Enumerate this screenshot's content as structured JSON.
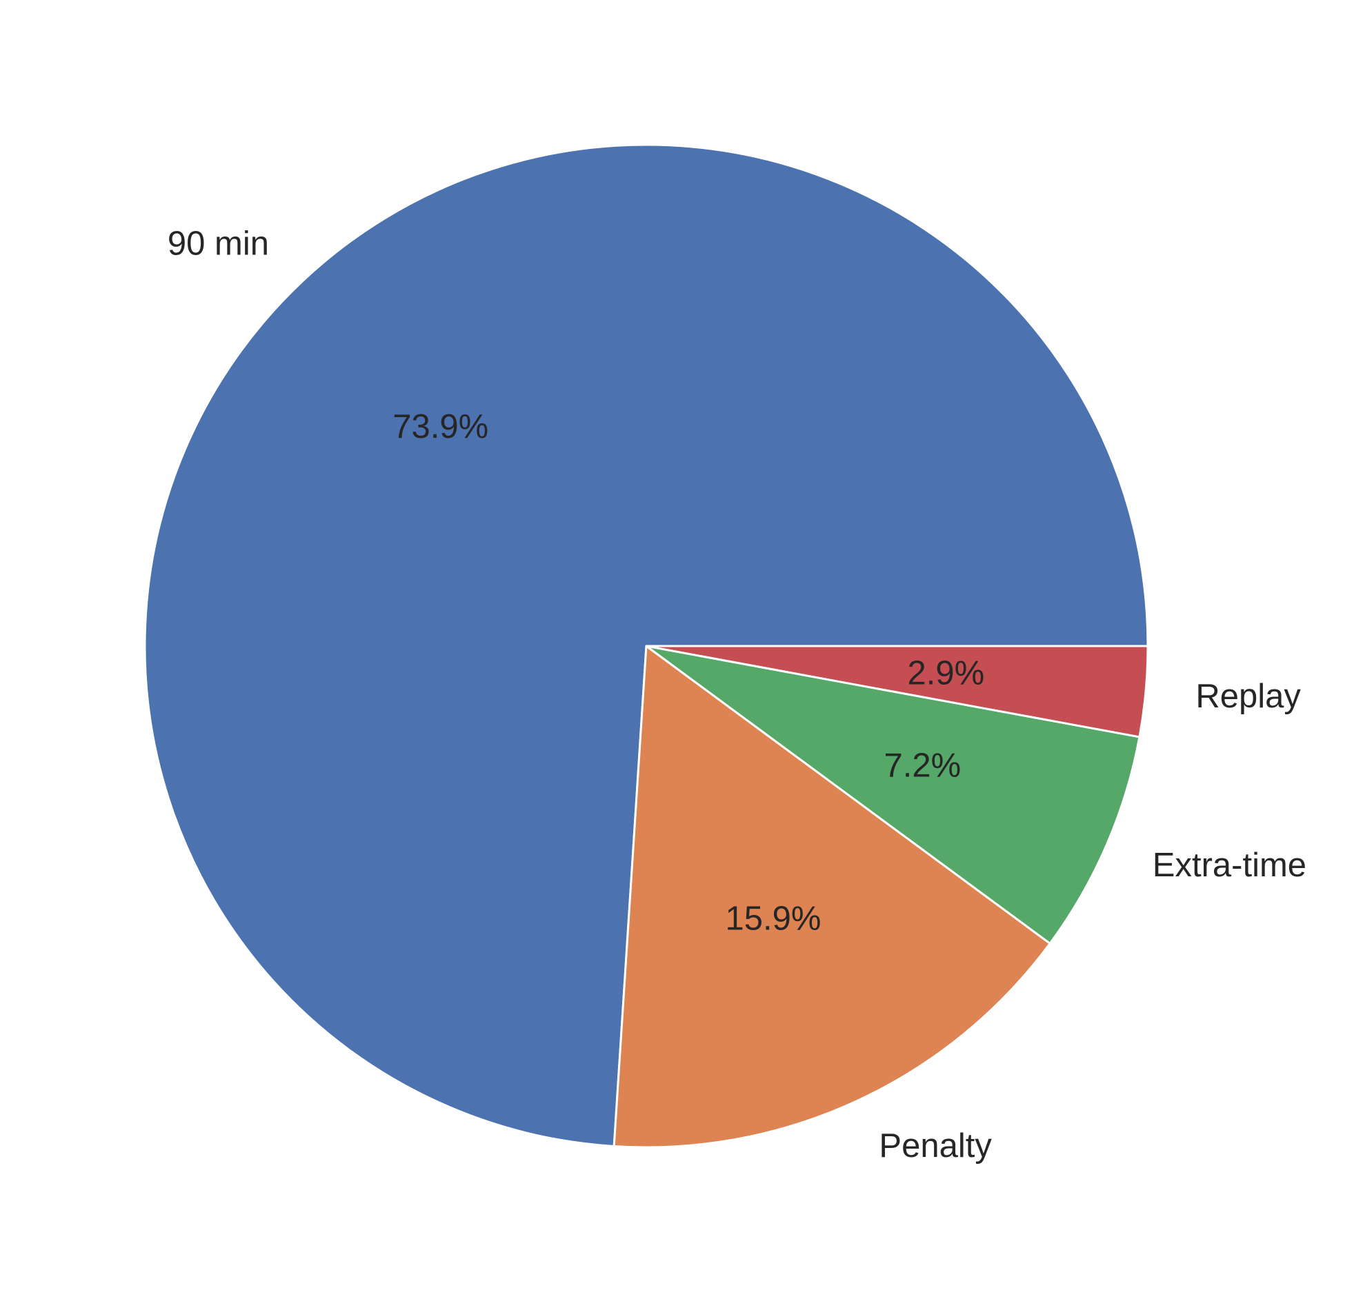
{
  "chart_data": {
    "type": "pie",
    "title": "",
    "start_angle_deg": 0,
    "direction": "counterclockwise",
    "slices": [
      {
        "label": "90 min",
        "percent": 73.9,
        "pct_label": "73.9%",
        "color": "#4c72b0"
      },
      {
        "label": "Penalty",
        "percent": 15.9,
        "pct_label": "15.9%",
        "color": "#dd8452"
      },
      {
        "label": "Extra-time",
        "percent": 7.2,
        "pct_label": "7.2%",
        "color": "#55a868"
      },
      {
        "label": "Replay",
        "percent": 2.9,
        "pct_label": "2.9%",
        "color": "#c44e52"
      }
    ]
  }
}
